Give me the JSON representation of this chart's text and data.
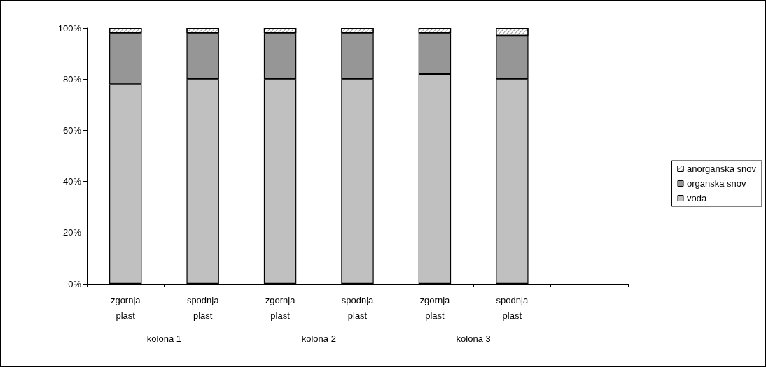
{
  "chart_data": {
    "type": "bar",
    "stacked": true,
    "categories": [
      "zgornja plast",
      "spodnja plast",
      "zgornja plast",
      "spodnja plast",
      "zgornja plast",
      "spodnja plast",
      null
    ],
    "series": [
      {
        "name": "voda",
        "color": "#c0c0c0",
        "values": [
          78,
          80,
          80,
          80,
          82,
          80,
          null
        ]
      },
      {
        "name": "organska snov",
        "color": "#969696",
        "values": [
          20,
          18,
          18,
          18,
          16,
          17,
          null
        ]
      },
      {
        "name": "anorganska snov",
        "color": "#ffffff",
        "values": [
          2,
          2,
          2,
          2,
          2,
          3,
          null
        ]
      }
    ],
    "ylim": [
      0,
      100
    ],
    "yticks": [
      {
        "value": 0,
        "label": "0%"
      },
      {
        "value": 20,
        "label": "20%"
      },
      {
        "value": 40,
        "label": "40%"
      },
      {
        "value": 60,
        "label": "60%"
      },
      {
        "value": 80,
        "label": "80%"
      },
      {
        "value": 100,
        "label": "100%"
      }
    ],
    "grid": false,
    "legend": "right",
    "annotations": [
      "kolona 1",
      "kolona 2",
      "kolona 3"
    ]
  }
}
